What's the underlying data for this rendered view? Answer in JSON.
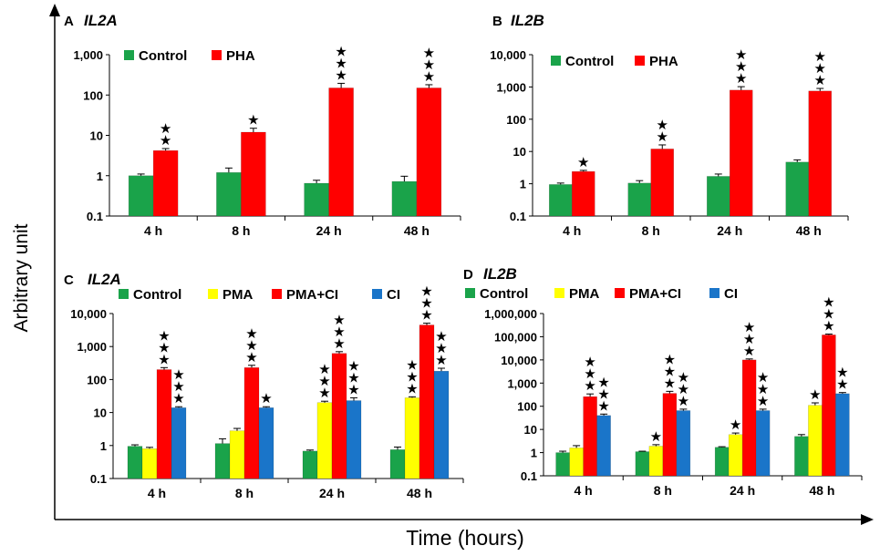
{
  "figure": {
    "y_axis_label": "Arbitrary unit",
    "x_axis_label": "Time (hours)"
  },
  "colors": {
    "Control": "#1aa34a",
    "PHA": "#ff0000",
    "PMA": "#ffff00",
    "PMA+CI": "#ff0000",
    "CI": "#1a75c9"
  },
  "chart_data": [
    {
      "panel": "A",
      "title": "IL2A",
      "type": "bar",
      "yscale": "log",
      "ylim": [
        0.1,
        1000
      ],
      "yticks": [
        "0.1",
        "1",
        "10",
        "100",
        "1,000"
      ],
      "categories": [
        "4 h",
        "8 h",
        "24 h",
        "48 h"
      ],
      "series": [
        {
          "name": "Control",
          "values": [
            1.0,
            1.2,
            0.65,
            0.72
          ],
          "errors": [
            0.1,
            0.35,
            0.12,
            0.25
          ],
          "stars": [
            0,
            0,
            0,
            0
          ]
        },
        {
          "name": "PHA",
          "values": [
            4.2,
            12,
            150,
            150
          ],
          "errors": [
            0.5,
            3,
            45,
            30
          ],
          "stars": [
            2,
            1,
            3,
            3
          ]
        }
      ]
    },
    {
      "panel": "B",
      "title": "IL2B",
      "type": "bar",
      "yscale": "log",
      "ylim": [
        0.1,
        10000
      ],
      "yticks": [
        "0.1",
        "1",
        "10",
        "100",
        "1,000",
        "10,000"
      ],
      "categories": [
        "4 h",
        "8 h",
        "24 h",
        "48 h"
      ],
      "series": [
        {
          "name": "Control",
          "values": [
            0.95,
            1.05,
            1.7,
            4.7
          ],
          "errors": [
            0.1,
            0.2,
            0.3,
            0.8
          ],
          "stars": [
            0,
            0,
            0,
            0
          ]
        },
        {
          "name": "PHA",
          "values": [
            2.4,
            12,
            800,
            750
          ],
          "errors": [
            0.2,
            4,
            220,
            150
          ],
          "stars": [
            1,
            2,
            3,
            3
          ]
        }
      ]
    },
    {
      "panel": "C",
      "title": "IL2A",
      "type": "bar",
      "yscale": "log",
      "ylim": [
        0.1,
        10000
      ],
      "yticks": [
        "0.1",
        "1",
        "10",
        "100",
        "1,000",
        "10,000"
      ],
      "categories": [
        "4 h",
        "8 h",
        "24 h",
        "48 h"
      ],
      "series": [
        {
          "name": "Control",
          "values": [
            0.95,
            1.15,
            0.68,
            0.75
          ],
          "errors": [
            0.1,
            0.45,
            0.05,
            0.15
          ],
          "stars": [
            0,
            0,
            0,
            0
          ]
        },
        {
          "name": "PMA",
          "values": [
            0.8,
            2.8,
            20,
            28
          ],
          "errors": [
            0.08,
            0.5,
            2,
            2
          ],
          "stars": [
            0,
            0,
            3,
            3
          ]
        },
        {
          "name": "PMA+CI",
          "values": [
            200,
            230,
            620,
            4500
          ],
          "errors": [
            30,
            40,
            80,
            600
          ],
          "stars": [
            3,
            3,
            3,
            3
          ]
        },
        {
          "name": "CI",
          "values": [
            14,
            14,
            23,
            180
          ],
          "errors": [
            1,
            1,
            5,
            40
          ],
          "stars": [
            3,
            1,
            3,
            3
          ]
        }
      ]
    },
    {
      "panel": "D",
      "title": "IL2B",
      "type": "bar",
      "yscale": "log",
      "ylim": [
        0.1,
        1000000
      ],
      "yticks": [
        "0.1",
        "1",
        "10",
        "100",
        "1,000",
        "10,000",
        "100,000",
        "1,000,000"
      ],
      "categories": [
        "4 h",
        "8 h",
        "24 h",
        "48 h"
      ],
      "series": [
        {
          "name": "Control",
          "values": [
            1.0,
            1.1,
            1.7,
            5.0
          ],
          "errors": [
            0.15,
            0.05,
            0.1,
            1.0
          ],
          "stars": [
            0,
            0,
            0,
            0
          ]
        },
        {
          "name": "PMA",
          "values": [
            1.6,
            1.9,
            6.0,
            110
          ],
          "errors": [
            0.4,
            0.3,
            1.0,
            30
          ],
          "stars": [
            0,
            1,
            1,
            1
          ]
        },
        {
          "name": "PMA+CI",
          "values": [
            260,
            360,
            10000,
            120000
          ],
          "errors": [
            80,
            80,
            1000,
            10000
          ],
          "stars": [
            3,
            3,
            3,
            3
          ]
        },
        {
          "name": "CI",
          "values": [
            40,
            65,
            65,
            350
          ],
          "errors": [
            6,
            10,
            10,
            40
          ],
          "stars": [
            3,
            3,
            3,
            2
          ]
        }
      ]
    }
  ]
}
